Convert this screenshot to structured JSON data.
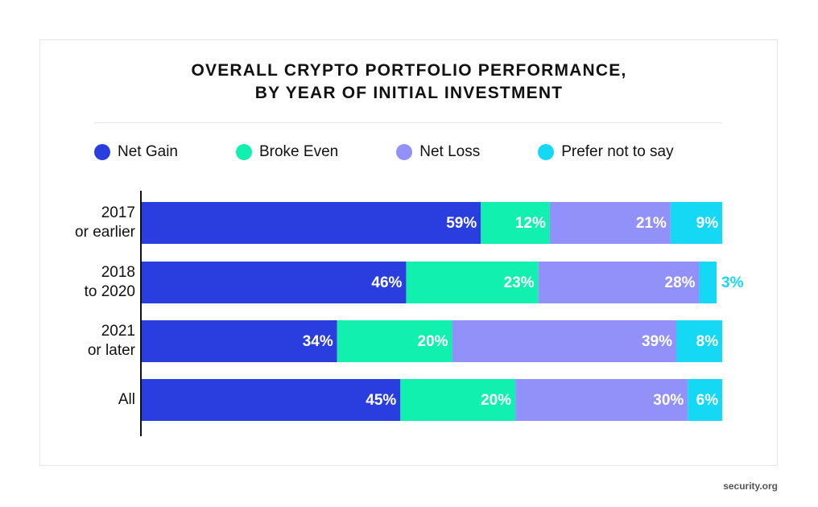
{
  "chart_data": {
    "type": "stacked-bar-horizontal",
    "title": "OVERALL CRYPTO PORTFOLIO PERFORMANCE,\nBY YEAR OF INITIAL INVESTMENT",
    "categories": [
      "2017\nor earlier",
      "2018\nto 2020",
      "2021\nor later",
      "All"
    ],
    "series": [
      {
        "name": "Net Gain",
        "color": "#2a3ee0",
        "values": [
          59,
          46,
          34,
          45
        ],
        "value_labels": [
          "59%",
          "46%",
          "34%",
          "45%"
        ]
      },
      {
        "name": "Broke Even",
        "color": "#12f0b0",
        "values": [
          12,
          23,
          20,
          20
        ],
        "value_labels": [
          "12%",
          "23%",
          "20%",
          "20%"
        ]
      },
      {
        "name": "Net Loss",
        "color": "#9291fa",
        "values": [
          21,
          28,
          39,
          30
        ],
        "value_labels": [
          "21%",
          "28%",
          "39%",
          "30%"
        ]
      },
      {
        "name": "Prefer not to say",
        "color": "#14d8f4",
        "values": [
          9,
          3,
          8,
          6
        ],
        "value_labels": [
          "9%",
          "3%",
          "8%",
          "6%"
        ]
      }
    ],
    "xlim": [
      0,
      100
    ],
    "watermark": "security.org"
  }
}
